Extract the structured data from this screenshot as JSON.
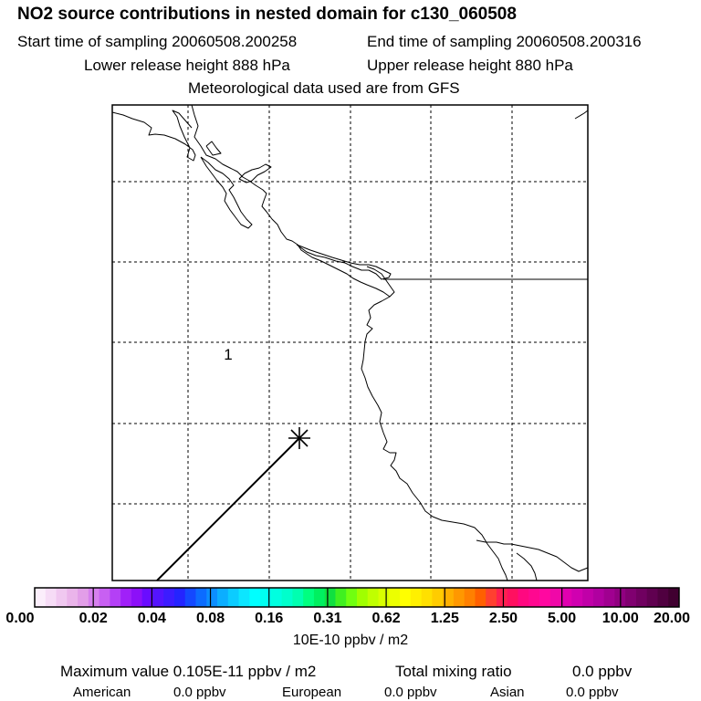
{
  "header": {
    "title": "NO2 source contributions in nested domain for c130_060508",
    "start_time": "Start time of sampling 20060508.200258",
    "end_time": "End time of sampling 20060508.200316",
    "lower_release": "Lower release height  888 hPa",
    "upper_release": "Upper release height  880 hPa",
    "met_data": "Meteorological data used are from GFS"
  },
  "map": {
    "contour_label": "1",
    "colors": {
      "frame": "#000000",
      "grid": "#000000",
      "coast": "#000000",
      "background": "#ffffff"
    }
  },
  "colorbar": {
    "ticks": [
      "0.00",
      "0.02",
      "0.04",
      "0.08",
      "0.16",
      "0.31",
      "0.62",
      "1.25",
      "2.50",
      "5.00",
      "10.00",
      "20.00"
    ],
    "units": "10E-10 ppbv / m2",
    "colors": [
      "#fbeefb",
      "#f6dcf6",
      "#f0c8f0",
      "#eab4ea",
      "#e29ee8",
      "#d680ee",
      "#c860f2",
      "#b440f6",
      "#a020f8",
      "#8c10f8",
      "#6a0cff",
      "#5414ff",
      "#3c1cff",
      "#2424ff",
      "#1448ff",
      "#0c6cff",
      "#0c8eff",
      "#0caeff",
      "#0cccff",
      "#0ce6ff",
      "#00ffff",
      "#00fff0",
      "#00ffe0",
      "#00ffcc",
      "#00ffb0",
      "#00ff80",
      "#00f060",
      "#10e040",
      "#40f020",
      "#70ff10",
      "#a0ff00",
      "#c0ff00",
      "#d8ff00",
      "#ecff00",
      "#ffff00",
      "#fff000",
      "#ffe000",
      "#ffcc00",
      "#ffb000",
      "#ff9800",
      "#ff8000",
      "#ff6000",
      "#ff4030",
      "#ff2050",
      "#ff1060",
      "#ff0880",
      "#ff0890",
      "#ff08a0",
      "#f008a8",
      "#e000b0",
      "#d000b0",
      "#c000a8",
      "#b000a0",
      "#a00090",
      "#900080",
      "#800070",
      "#700060",
      "#600050",
      "#500040",
      "#400030"
    ]
  },
  "stats": {
    "max_value": "Maximum value  0.105E-11 ppbv / m2",
    "total_mixing": "Total mixing ratio",
    "total_value": "0.0 ppbv",
    "regions": [
      {
        "name": "American",
        "value": "0.0 ppbv"
      },
      {
        "name": "European",
        "value": "0.0 ppbv"
      },
      {
        "name": "Asian",
        "value": "0.0 ppbv"
      }
    ]
  }
}
